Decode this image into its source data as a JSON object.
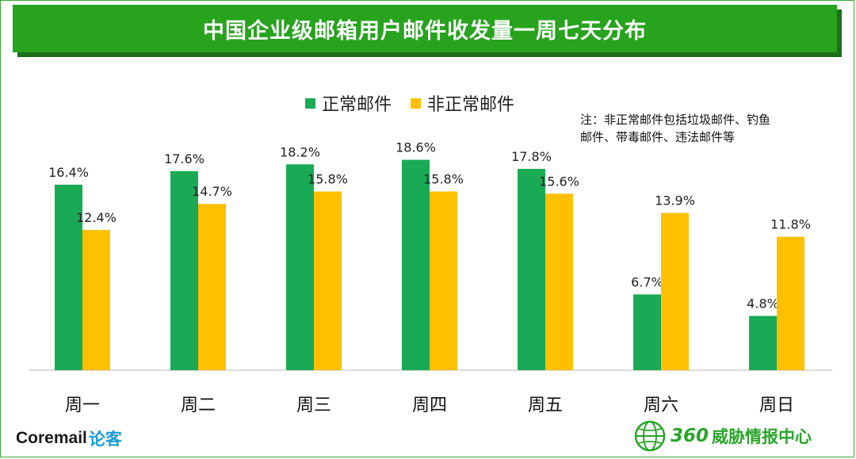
{
  "title": "中国企业级邮箱用户邮件收发量一周七天分布",
  "legend": {
    "normal": "正常邮件",
    "abnormal": "非正常邮件"
  },
  "note_line1": "注：非正常邮件包括垃圾邮件、钓鱼",
  "note_line2": "邮件、带毒邮件、违法邮件等",
  "colors": {
    "normal": "#1aaa55",
    "abnormal": "#ffc000",
    "title_bg": "#27a31d",
    "brand_green": "#2aa52a"
  },
  "chart_data": {
    "type": "bar",
    "title": "中国企业级邮箱用户邮件收发量一周七天分布",
    "categories": [
      "周一",
      "周二",
      "周三",
      "周四",
      "周五",
      "周六",
      "周日"
    ],
    "series": [
      {
        "name": "正常邮件",
        "values": [
          16.4,
          17.6,
          18.2,
          18.6,
          17.8,
          6.7,
          4.8
        ],
        "labels": [
          "16.4%",
          "17.6%",
          "18.2%",
          "18.6%",
          "17.8%",
          "6.7%",
          "4.8%"
        ]
      },
      {
        "name": "非正常邮件",
        "values": [
          12.4,
          14.7,
          15.8,
          15.8,
          15.6,
          13.9,
          11.8
        ],
        "labels": [
          "12.4%",
          "14.7%",
          "15.8%",
          "15.8%",
          "15.6%",
          "13.9%",
          "11.8%"
        ]
      }
    ],
    "ylim": [
      0,
      20
    ],
    "xlabel": "",
    "ylabel": "",
    "grid": false,
    "legend_position": "top-center"
  },
  "footer": {
    "coremail": "Coremail",
    "lunke": "论客",
    "brand_num": "360",
    "brand_text": "威胁情报中心"
  }
}
